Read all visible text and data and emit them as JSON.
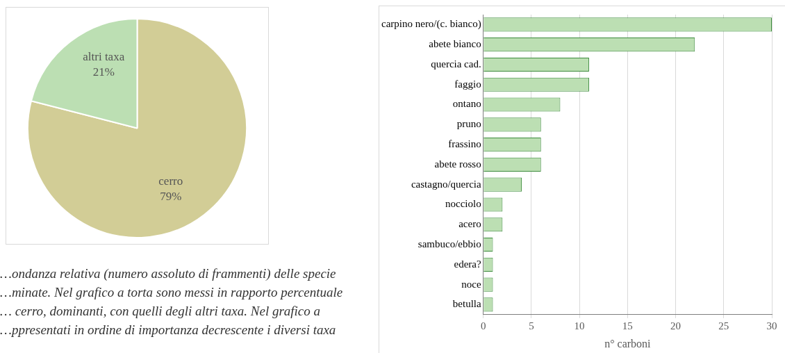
{
  "chart_data": [
    {
      "type": "pie",
      "categories": [
        "cerro",
        "altri taxa"
      ],
      "values": [
        79,
        21
      ],
      "value_labels": [
        "79%",
        "21%"
      ],
      "colors": [
        "#d2cd96",
        "#bcdfb3"
      ],
      "legend": false,
      "annotations": [
        "…ondanza relativa (numero assoluto di frammenti) delle specie",
        "…minate. Nel grafico a torta sono messi in rapporto percentuale",
        "… cerro, dominanti, con quelli degli altri taxa. Nel grafico a",
        "…ppresentati in ordine di importanza decrescente i diversi taxa"
      ]
    },
    {
      "type": "bar",
      "orientation": "horizontal",
      "categories": [
        "carpino nero/(c. bianco)",
        "abete bianco",
        "quercia cad.",
        "faggio",
        "ontano",
        "pruno",
        "frassino",
        "abete rosso",
        "castagno/quercia",
        "nocciolo",
        "acero",
        "sambuco/ebbio",
        "edera?",
        "noce",
        "betulla"
      ],
      "values": [
        30,
        22,
        11,
        11,
        8,
        6,
        6,
        6,
        4,
        2,
        2,
        1,
        1,
        1,
        1
      ],
      "color": "#bcdfb3",
      "xlabel": "n° carboni",
      "xlim": [
        0,
        30
      ],
      "xticks": [
        0,
        5,
        10,
        15,
        20,
        25,
        30
      ],
      "grid": "x",
      "legend": false
    }
  ]
}
